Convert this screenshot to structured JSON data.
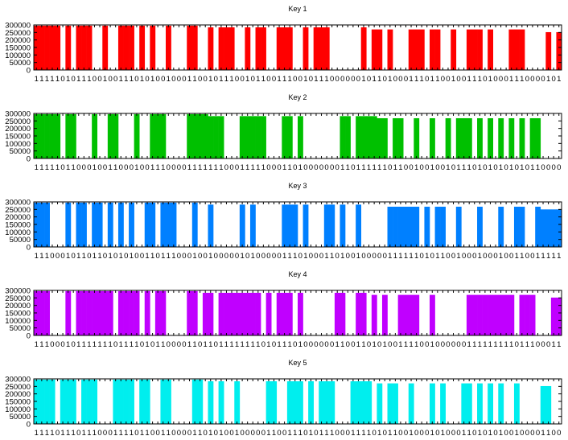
{
  "chart_data": [
    {
      "type": "bar",
      "title": "Key 1",
      "color": "#ff0000",
      "ylim": [
        0,
        300000
      ],
      "yticks": [
        "0",
        "50000",
        "100000",
        "150000",
        "200000",
        "250000",
        "300000"
      ],
      "bits": "1111101011100100111010100100011001011100101100111001011100000010110100011101100100111010001110000101",
      "bar_levels": [
        [
          0,
          295000
        ],
        [
          31,
          284000
        ],
        [
          63,
          270000
        ],
        [
          95,
          252000
        ]
      ]
    },
    {
      "type": "bar",
      "title": "Key 2",
      "color": "#00c000",
      "ylim": [
        0,
        300000
      ],
      "yticks": [
        "0",
        "50000",
        "100000",
        "150000",
        "200000",
        "250000",
        "300000"
      ],
      "bits": "1111101100010011000100111000011111110001111100011010000000110111111011001001001011101010101010110000",
      "bar_levels": [
        [
          0,
          295000
        ],
        [
          33,
          282000
        ],
        [
          65,
          268000
        ]
      ]
    },
    {
      "type": "bar",
      "title": "Key 3",
      "color": "#0080ff",
      "ylim": [
        0,
        300000
      ],
      "yticks": [
        "0",
        "50000",
        "100000",
        "150000",
        "200000",
        "250000",
        "300000"
      ],
      "bits": "1110001011011010101001101110001001000001010000011101000110100100000111111010110010001000100110011111",
      "bar_levels": [
        [
          0,
          295000
        ],
        [
          32,
          282000
        ],
        [
          65,
          268000
        ],
        [
          96,
          250000
        ]
      ]
    },
    {
      "type": "bar",
      "title": "Key 4",
      "color": "#c000ff",
      "ylim": [
        0,
        300000
      ],
      "yticks": [
        "0",
        "50000",
        "100000",
        "150000",
        "200000",
        "250000",
        "300000"
      ],
      "bits": "1110001011111110111101011000011011011111111010111010000001100110101001111001000000111111111011100011",
      "bar_levels": [
        [
          0,
          295000
        ],
        [
          31,
          284000
        ],
        [
          63,
          270000
        ],
        [
          95,
          252000
        ]
      ]
    },
    {
      "type": "bar",
      "title": "Key 5",
      "color": "#00eeee",
      "ylim": [
        0,
        300000
      ],
      "yticks": [
        "0",
        "50000",
        "100000",
        "150000",
        "200000",
        "250000",
        "300000"
      ],
      "bits": "1111011101110001111011001100001101010010000011001110101110001111010110010001010001101010100100001100",
      "bar_levels": [
        [
          0,
          295000
        ],
        [
          32,
          284000
        ],
        [
          64,
          270000
        ],
        [
          95,
          252000
        ]
      ]
    }
  ]
}
